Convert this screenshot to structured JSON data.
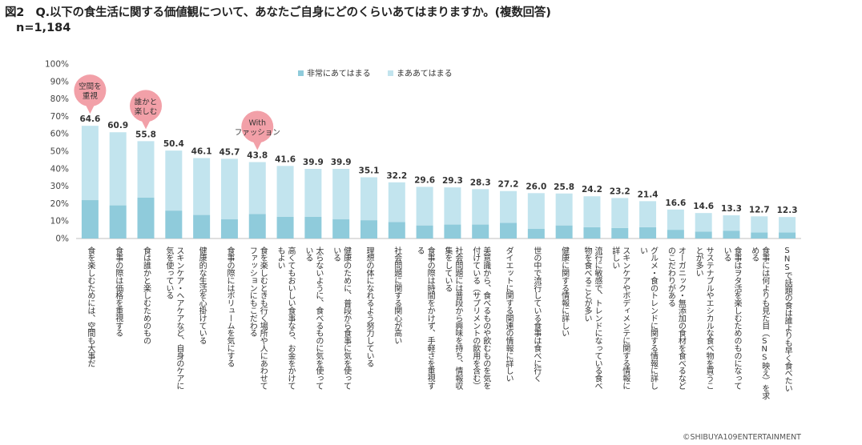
{
  "figure": {
    "title": "図2　Q.以下の食生活に関する価値観について、あなたご自身にどのくらいあてはまりますか。(複数回答)",
    "n": "n=1,184",
    "credit": "©SHIBUYA109ENTERTAINMENT"
  },
  "colors": {
    "very_much": "#8fcbdb",
    "somewhat": "#c2e4ee",
    "bubble": "#f2a0a8",
    "grid": "#d9d9d9",
    "axis_text": "#444444"
  },
  "chart_data": {
    "type": "bar",
    "stacked": true,
    "ylim": [
      0,
      100
    ],
    "yticks": [
      "0%",
      "10%",
      "20%",
      "30%",
      "40%",
      "50%",
      "60%",
      "70%",
      "80%",
      "90%",
      "100%"
    ],
    "grid": false,
    "legend_position": "top-center",
    "legend": [
      "非常にあてはまる",
      "まああてはまる"
    ],
    "categories": [
      "食を楽しむためには、空間も大事だ",
      "食事の際は価格を重視する",
      "食は誰かと楽しむためのもの",
      "スキンケア・ヘアケアなど、自身のケアに気を使っている",
      "健康的な生活を心掛けている",
      "食事の際にはボリュームを気にする",
      "食を楽しむときも行く場所や人にあわせてファッションにもこだわる",
      "高くてもおいしい食事なら、お金をかけてもよい",
      "太らないように、食べるものに気を使っている",
      "健康のために、普段から食事に気を使っている",
      "理想の体になれるよう努力している",
      "社会問題に関する関心が高い",
      "食事の際は時間をかけず、手軽さを重視する",
      "社会問題には普段から興味を持ち、情報収集をしている",
      "美意識から、食べるものや飲むものを気を付けている（サプリメントの飲用を含む）",
      "ダイエットに関する関連の情報に詳しい",
      "世の中で流行している食事は食べに行く",
      "健康に関する情報に詳しい",
      "流行に敏感で、トレンドになっている食べ物を食べることが多い",
      "スキンケアやボディメンテに関する情報に詳しい",
      "グルメ・食のトレンドに関する情報に詳しい",
      "オーガニック・無添加の食材を食べるなどのこだわりがある",
      "サステナブルやエシカルな食べ物を買うことが多い",
      "食事はヲタ活を楽しむためのものになっている",
      "食事には何よりも見た目（SNS映え）を求める",
      "SNSで話題の食は誰よりも早く食べたい"
    ],
    "label_lines": [
      [
        "食を楽しむためには、空間も大事だ"
      ],
      [
        "食事の際は価格を重視する"
      ],
      [
        "食は誰かと楽しむためのもの"
      ],
      [
        "スキンケア・ヘアケアなど、自身のケアに",
        "気を使っている"
      ],
      [
        "健康的な生活を心掛けている"
      ],
      [
        "食事の際にはボリュームを気にする"
      ],
      [
        "食を楽しむときも行く場所や人にあわせて",
        "ファッションにもこだわる"
      ],
      [
        "高くてもおいしい食事なら、お金をかけて",
        "もよい"
      ],
      [
        "太らないように、食べるものに気を使って",
        "いる"
      ],
      [
        "健康のために、普段から食事に気を使って",
        "いる"
      ],
      [
        "理想の体になれるよう努力している"
      ],
      [
        "社会問題に関する関心が高い"
      ],
      [
        "食事の際は時間をかけず、手軽さを重視す",
        "る"
      ],
      [
        "社会問題には普段から興味を持ち、情報収",
        "集をしている"
      ],
      [
        "美意識から、食べるものや飲むものを気を",
        "付けている（サプリメントの飲用を含む）"
      ],
      [
        "ダイエットに関する関連の情報に詳しい"
      ],
      [
        "世の中で流行している食事は食べに行く"
      ],
      [
        "健康に関する情報に詳しい"
      ],
      [
        "流行に敏感で、トレンドになっている食べ",
        "物を食べることが多い"
      ],
      [
        "スキンケアやボディメンテに関する情報に",
        "詳しい"
      ],
      [
        "グルメ・食のトレンドに関する情報に詳し",
        "い"
      ],
      [
        "オーガニック・無添加の食材を食べるなど",
        "のこだわりがある"
      ],
      [
        "サステナブルやエシカルな食べ物を買うこ",
        "とが多い"
      ],
      [
        "食事はヲタ活を楽しむためのものになって",
        "いる"
      ],
      [
        "食事には何よりも見た目（SNS映え）を求",
        "める"
      ],
      [
        "SNSで話題の食は誰よりも早く食べたい"
      ]
    ],
    "series": [
      {
        "name": "非常にあてはまる",
        "values": [
          22,
          19,
          23.5,
          16,
          13.5,
          11,
          14,
          12.5,
          12.5,
          11,
          10.5,
          9.5,
          7.5,
          8,
          8,
          9,
          5.5,
          7.5,
          6.5,
          6,
          6.5,
          5,
          4,
          4.5,
          3.5,
          3.5
        ]
      },
      {
        "name": "まああてはまる",
        "values": [
          42.6,
          41.9,
          32.3,
          34.4,
          32.6,
          34.7,
          29.8,
          29.1,
          27.4,
          28.9,
          24.6,
          22.7,
          22.1,
          21.3,
          20.3,
          18.2,
          20.5,
          18.3,
          17.7,
          17.2,
          14.9,
          11.6,
          10.6,
          8.8,
          9.2,
          8.8
        ]
      }
    ],
    "total_labels": [
      "64.6",
      "60.9",
      "55.8",
      "50.4",
      "46.1",
      "45.7",
      "43.8",
      "41.6",
      "39.9",
      "39.9",
      "35.1",
      "32.2",
      "29.6",
      "29.3",
      "28.3",
      "27.2",
      "26.0",
      "25.8",
      "24.2",
      "23.2",
      "21.4",
      "16.6",
      "14.6",
      "13.3",
      "12.7",
      "12.3"
    ],
    "callouts": [
      {
        "index": 0,
        "lines": [
          "空間を",
          "重視"
        ]
      },
      {
        "index": 2,
        "lines": [
          "誰かと",
          "楽しむ"
        ]
      },
      {
        "index": 6,
        "lines": [
          "With",
          "ファッション"
        ]
      }
    ]
  }
}
